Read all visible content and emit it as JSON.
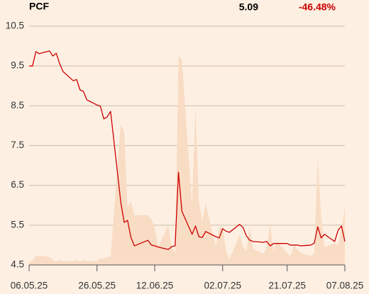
{
  "chart_data": {
    "type": "line",
    "title": "PCF",
    "last_price": 5.09,
    "change": {
      "value": -46.48,
      "label": "-46.48%"
    },
    "x": [
      "06.05.25",
      "07.05.25",
      "08.05.25",
      "09.05.25",
      "12.05.25",
      "13.05.25",
      "14.05.25",
      "15.05.25",
      "16.05.25",
      "19.05.25",
      "20.05.25",
      "21.05.25",
      "22.05.25",
      "23.05.25",
      "26.05.25",
      "27.05.25",
      "28.05.25",
      "29.05.25",
      "30.05.25",
      "02.06.25",
      "03.06.25",
      "04.06.25",
      "05.06.25",
      "06.06.25",
      "10.06.25",
      "11.06.25",
      "12.06.25",
      "13.06.25",
      "16.06.25",
      "17.06.25",
      "18.06.25",
      "19.06.25",
      "20.06.25",
      "23.06.25",
      "24.06.25",
      "25.06.25",
      "26.06.25",
      "27.06.25",
      "30.06.25",
      "01.07.25",
      "02.07.25",
      "03.07.25",
      "04.07.25",
      "07.07.25",
      "08.07.25",
      "09.07.25",
      "10.07.25",
      "11.07.25",
      "14.07.25",
      "15.07.25",
      "16.07.25",
      "17.07.25",
      "18.07.25",
      "21.07.25",
      "22.07.25",
      "23.07.25",
      "24.07.25",
      "25.07.25",
      "28.07.25",
      "29.07.25",
      "30.07.25",
      "31.07.25",
      "01.08.25",
      "04.08.25",
      "05.08.25",
      "06.08.25",
      "07.08.25"
    ],
    "series": [
      {
        "type": "area",
        "color": "#f9dcc4",
        "values": [
          4.6,
          4.6,
          4.73,
          4.73,
          4.7,
          4.62,
          4.58,
          4.62,
          4.6,
          4.6,
          4.62,
          4.58,
          4.62,
          4.6,
          4.6,
          4.68,
          4.65,
          4.7,
          4.7,
          8.05,
          7.85,
          5.95,
          6.1,
          5.75,
          5.75,
          5.65,
          5.45,
          4.95,
          5.5,
          4.95,
          4.8,
          9.77,
          9.65,
          6.0,
          8.5,
          6.1,
          5.6,
          6.05,
          4.95,
          5.45,
          5.45,
          4.85,
          4.65,
          5.25,
          4.95,
          4.85,
          5.45,
          4.9,
          4.78,
          4.95,
          5.55,
          4.85,
          5.1,
          4.8,
          4.72,
          5.0,
          4.9,
          4.8,
          4.72,
          4.8,
          7.25,
          5.75,
          4.95,
          5.05,
          5.0,
          5.4,
          5.95
        ]
      },
      {
        "type": "line",
        "color": "#cc0000",
        "values": [
          9.5,
          9.5,
          9.86,
          9.81,
          9.88,
          9.75,
          9.82,
          9.56,
          9.36,
          9.13,
          9.16,
          8.9,
          8.86,
          8.65,
          8.52,
          8.49,
          8.17,
          8.22,
          8.36,
          6.08,
          5.57,
          5.62,
          5.19,
          4.98,
          5.12,
          5.0,
          4.98,
          4.95,
          4.89,
          4.96,
          4.98,
          6.83,
          5.85,
          5.27,
          5.48,
          5.21,
          5.19,
          5.34,
          5.21,
          5.18,
          5.41,
          5.35,
          5.32,
          5.52,
          5.44,
          5.23,
          5.12,
          5.09,
          5.07,
          5.09,
          4.98,
          5.04,
          5.04,
          5.04,
          5.0,
          5.0,
          5.0,
          4.98,
          5.0,
          5.05,
          5.46,
          5.18,
          5.27,
          5.09,
          5.37,
          5.48,
          5.09
        ]
      }
    ],
    "xlim": [
      "06.05.25",
      "07.08.25"
    ],
    "xticks": [
      "06.05.25",
      "26.05.25",
      "12.06.25",
      "02.07.25",
      "21.07.25",
      "07.08.25"
    ],
    "ylim": [
      4.5,
      10.5
    ],
    "yticks": [
      4.5,
      5.5,
      6.5,
      7.5,
      8.5,
      9.5,
      10.5
    ],
    "grid": true
  }
}
